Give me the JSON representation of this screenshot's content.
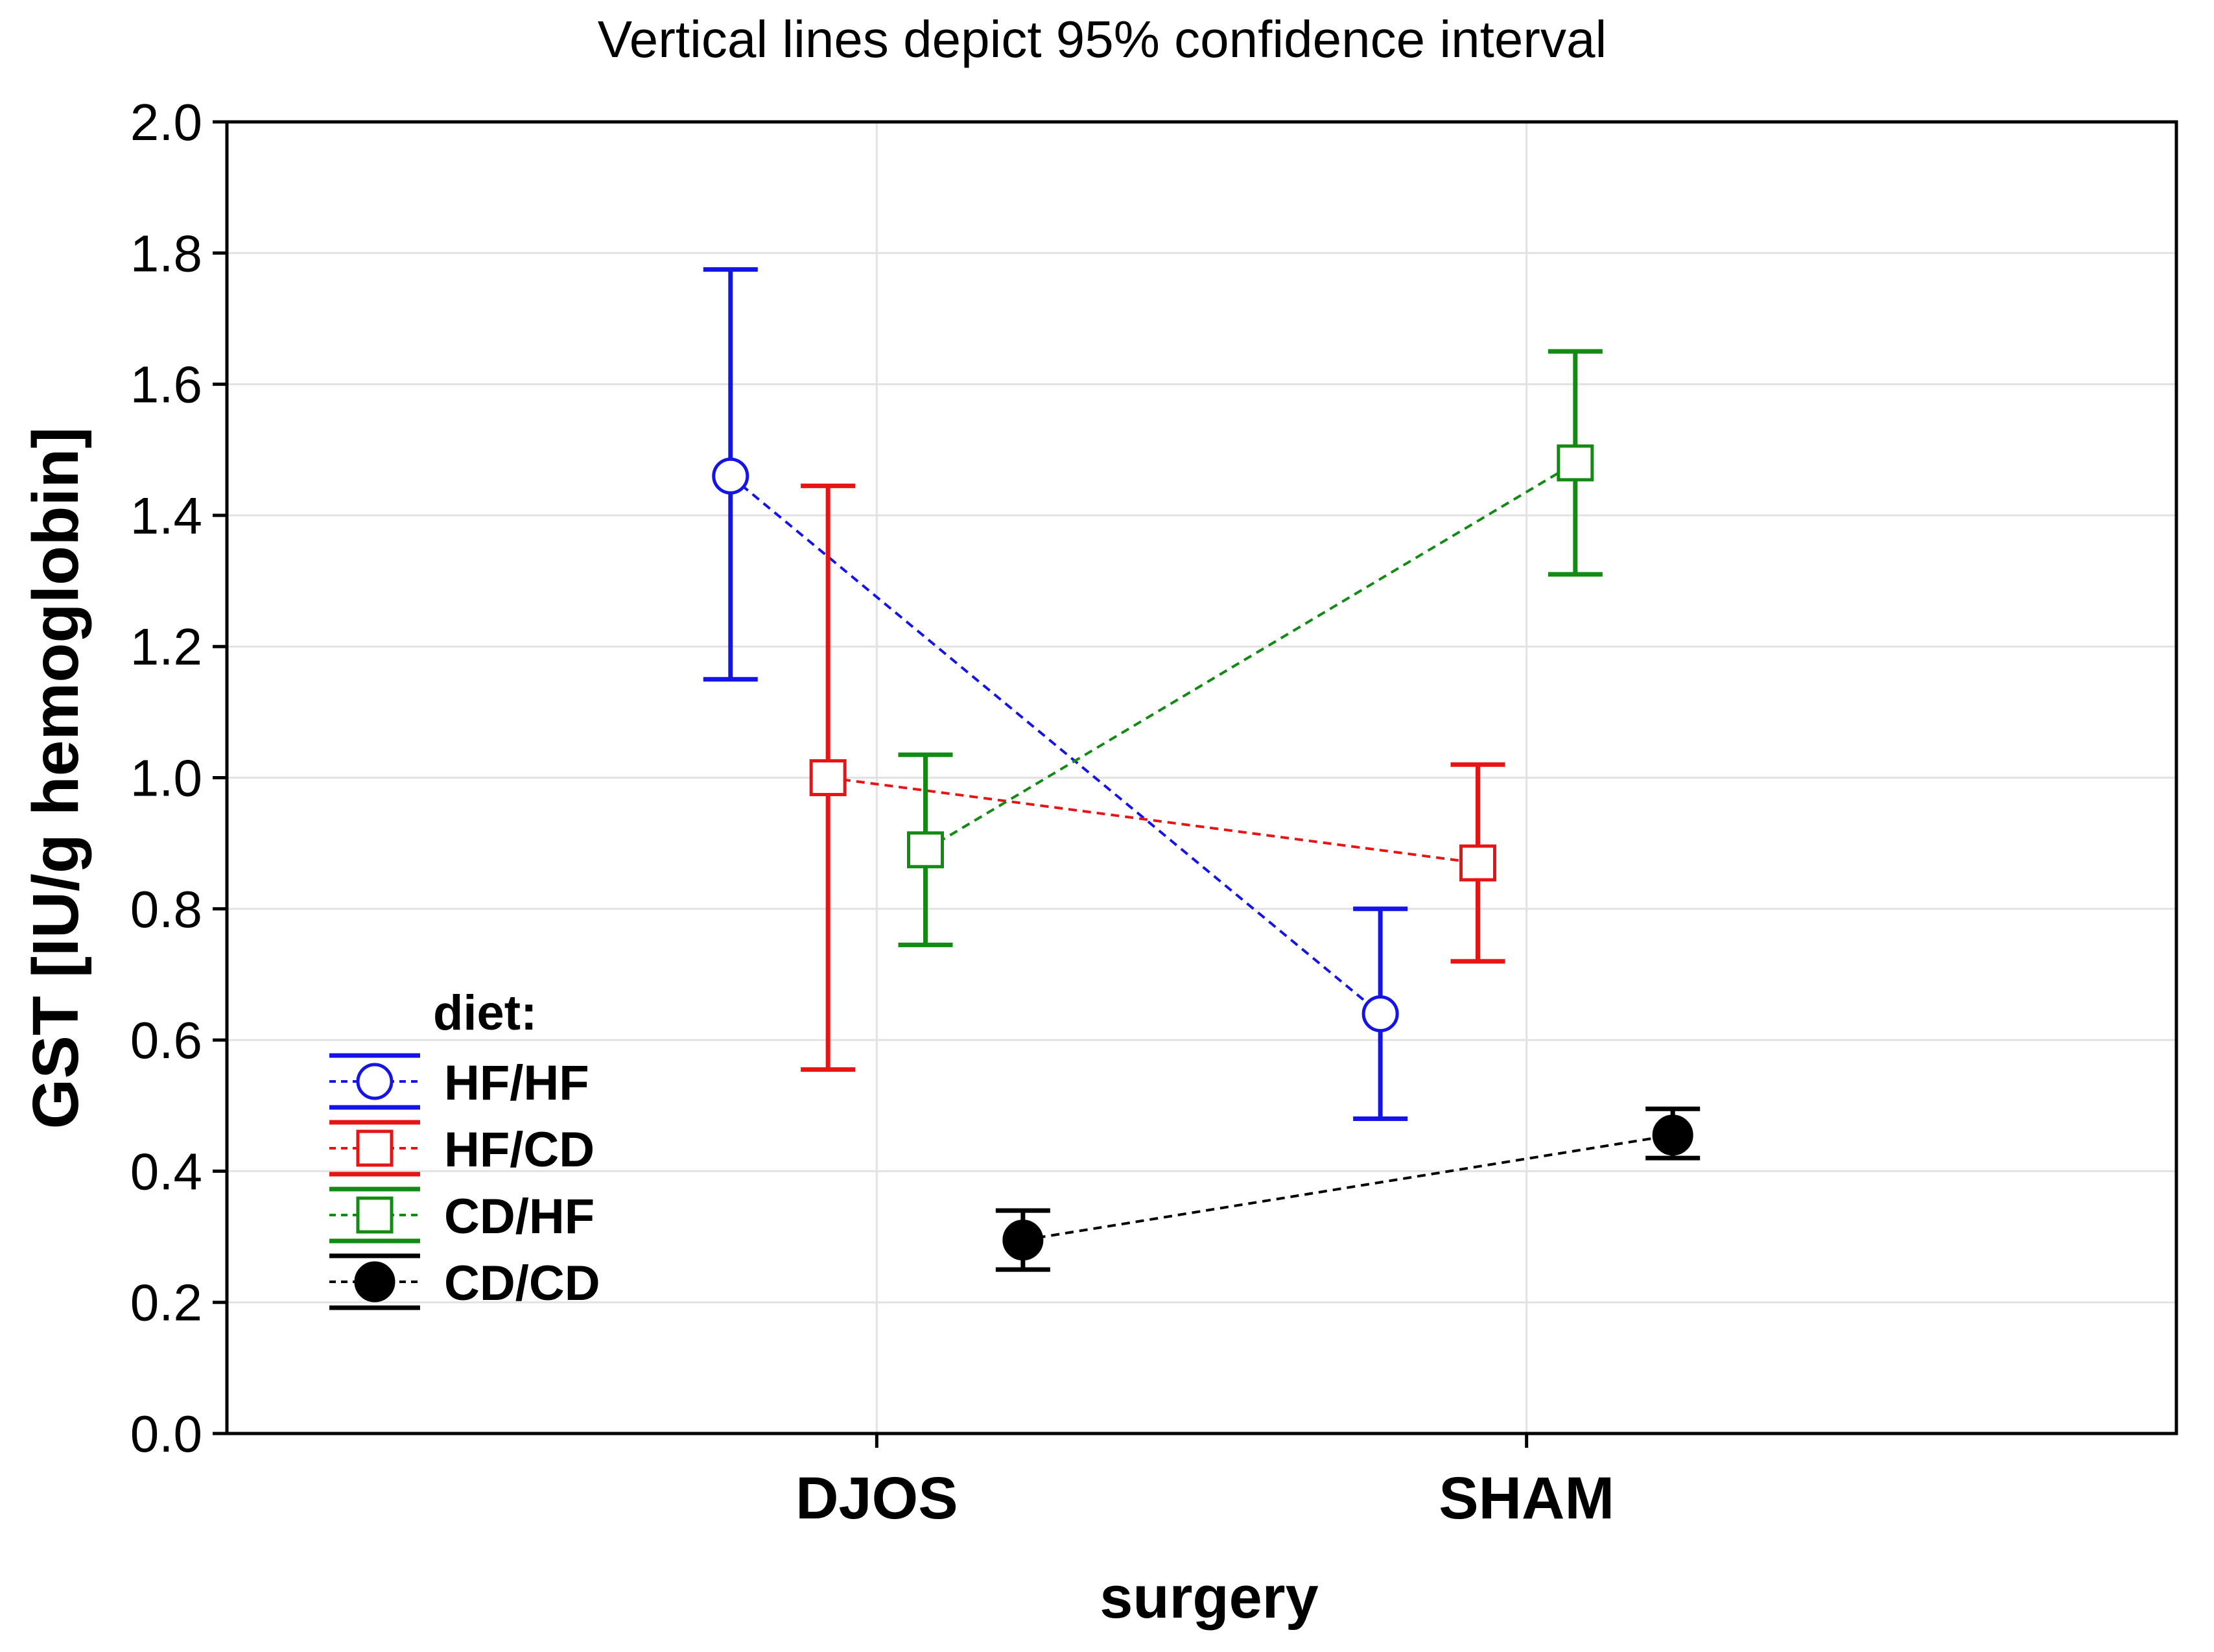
{
  "chart_data": {
    "type": "line",
    "title": "Vertical lines depict 95% confidence interval",
    "xlabel": "surgery",
    "ylabel": "GST [IU/g hemoglobin]",
    "categories": [
      "DJOS",
      "SHAM"
    ],
    "ylim": [
      0,
      2.0
    ],
    "yticks": [
      0.0,
      0.2,
      0.4,
      0.6,
      0.8,
      1.0,
      1.2,
      1.4,
      1.6,
      1.8,
      2.0
    ],
    "ytick_labels": [
      "0.0",
      "0.2",
      "0.4",
      "0.6",
      "0.8",
      "1.0",
      "1.2",
      "1.4",
      "1.6",
      "1.8",
      "2.0"
    ],
    "grid": true,
    "legend_title": "diet:",
    "legend_position": "bottom-left",
    "series": [
      {
        "name": "HF/HF",
        "color": "#1414e6",
        "marker": "open-circle",
        "offset": -0.225,
        "values": [
          1.46,
          0.64
        ],
        "lower": [
          1.15,
          0.48
        ],
        "upper": [
          1.775,
          0.8
        ]
      },
      {
        "name": "HF/CD",
        "color": "#e61414",
        "marker": "open-square",
        "offset": -0.075,
        "values": [
          1.0,
          0.87
        ],
        "lower": [
          0.555,
          0.72
        ],
        "upper": [
          1.445,
          1.02
        ]
      },
      {
        "name": "CD/HF",
        "color": "#138a13",
        "marker": "open-square",
        "offset": 0.075,
        "values": [
          0.89,
          1.48
        ],
        "lower": [
          0.745,
          1.31
        ],
        "upper": [
          1.035,
          1.65
        ]
      },
      {
        "name": "CD/CD",
        "color": "#000000",
        "marker": "filled-circle",
        "offset": 0.225,
        "values": [
          0.295,
          0.455
        ],
        "lower": [
          0.25,
          0.42
        ],
        "upper": [
          0.34,
          0.495
        ]
      }
    ]
  }
}
